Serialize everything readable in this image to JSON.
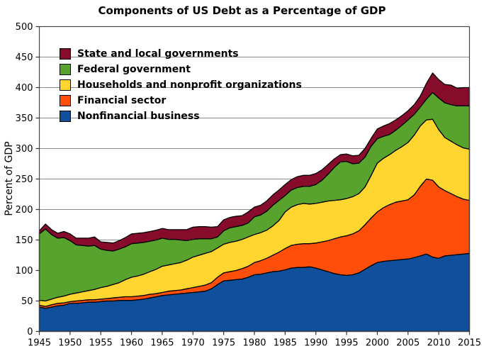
{
  "legend": [
    {
      "label": "State and local governments",
      "color": "#870B2B"
    },
    {
      "label": "Federal government",
      "color": "#57A32E"
    },
    {
      "label": "Households and nonprofit organizations",
      "color": "#FFD52F"
    },
    {
      "label": "Financial sector",
      "color": "#FF4E0A"
    },
    {
      "label": "Nonfinancial business",
      "color": "#0F4F9C"
    }
  ],
  "chart_data": {
    "type": "area",
    "stacked": true,
    "title": "Components of US Debt as a Percentage of GDP",
    "xlabel": "",
    "ylabel": "Percent of GDP",
    "xlim": [
      1945,
      2015
    ],
    "ylim": [
      0,
      500
    ],
    "grid": true,
    "legend_position": "upper-left",
    "grid_color": "#8C8C8C",
    "frame_color": "#444444",
    "outline_color": "#000000",
    "y_ticks": [
      0,
      50,
      100,
      150,
      200,
      250,
      300,
      350,
      400,
      450,
      500
    ],
    "x_ticks": [
      1945,
      1950,
      1955,
      1960,
      1965,
      1970,
      1975,
      1980,
      1985,
      1990,
      1995,
      2000,
      2005,
      2010,
      2015
    ],
    "x": [
      1945,
      1946,
      1947,
      1948,
      1949,
      1950,
      1951,
      1952,
      1953,
      1954,
      1955,
      1956,
      1957,
      1958,
      1959,
      1960,
      1961,
      1962,
      1963,
      1964,
      1965,
      1966,
      1967,
      1968,
      1969,
      1970,
      1971,
      1972,
      1973,
      1974,
      1975,
      1976,
      1977,
      1978,
      1979,
      1980,
      1981,
      1982,
      1983,
      1984,
      1985,
      1986,
      1987,
      1988,
      1989,
      1990,
      1991,
      1992,
      1993,
      1994,
      1995,
      1996,
      1997,
      1998,
      1999,
      2000,
      2001,
      2002,
      2003,
      2004,
      2005,
      2006,
      2007,
      2008,
      2009,
      2010,
      2011,
      2012,
      2013,
      2014,
      2015
    ],
    "series": [
      {
        "name": "Nonfinancial business",
        "color": "#0F4F9C",
        "values": [
          40,
          38,
          40,
          42,
          43,
          46,
          46,
          47,
          48,
          48,
          49,
          50,
          50,
          51,
          51,
          51,
          52,
          53,
          55,
          57,
          59,
          60,
          61,
          62,
          63,
          64,
          65,
          66,
          70,
          77,
          83,
          84,
          85,
          86,
          89,
          93,
          94,
          96,
          98,
          99,
          101,
          104,
          105,
          105,
          106,
          104,
          101,
          98,
          95,
          93,
          92,
          93,
          96,
          102,
          108,
          113,
          115,
          116,
          117,
          118,
          119,
          121,
          124,
          127,
          122,
          120,
          124,
          125,
          126,
          127,
          128
        ]
      },
      {
        "name": "Financial sector",
        "color": "#FF4E0A",
        "values": [
          3,
          3,
          4,
          4,
          4,
          3,
          4,
          4,
          4,
          4,
          4,
          4,
          5,
          5,
          6,
          6,
          6,
          6,
          6,
          5,
          5,
          6,
          6,
          6,
          7,
          8,
          9,
          10,
          10,
          12,
          13,
          14,
          15,
          17,
          18,
          20,
          22,
          24,
          27,
          31,
          35,
          37,
          38,
          39,
          38,
          41,
          46,
          51,
          57,
          62,
          65,
          67,
          69,
          73,
          78,
          83,
          88,
          92,
          95,
          96,
          97,
          103,
          114,
          123,
          126,
          117,
          107,
          101,
          95,
          90,
          87
        ]
      },
      {
        "name": "Households and nonprofit organizations",
        "color": "#FFD52F",
        "values": [
          8,
          9,
          9,
          10,
          11,
          12,
          13,
          14,
          15,
          17,
          19,
          20,
          22,
          24,
          28,
          32,
          33,
          35,
          37,
          40,
          43,
          43,
          44,
          45,
          47,
          50,
          51,
          52,
          51,
          48,
          47,
          48,
          48,
          48,
          48,
          46,
          46,
          46,
          48,
          52,
          60,
          63,
          65,
          66,
          65,
          65,
          65,
          65,
          63,
          61,
          61,
          61,
          61,
          62,
          70,
          80,
          81,
          82,
          85,
          89,
          94,
          98,
          99,
          97,
          100,
          94,
          87,
          86,
          85,
          84,
          84
        ]
      },
      {
        "name": "Federal government",
        "color": "#57A32E",
        "values": [
          109,
          118,
          106,
          97,
          96,
          88,
          79,
          76,
          73,
          72,
          63,
          59,
          55,
          55,
          54,
          55,
          54,
          52,
          50,
          48,
          46,
          42,
          40,
          37,
          32,
          29,
          27,
          24,
          21,
          18,
          22,
          24,
          24,
          23,
          23,
          29,
          29,
          31,
          34,
          33,
          27,
          28,
          28,
          28,
          29,
          31,
          36,
          44,
          54,
          62,
          61,
          54,
          50,
          49,
          48,
          40,
          36,
          33,
          33,
          35,
          37,
          34,
          31,
          34,
          44,
          52,
          57,
          60,
          64,
          69,
          71
        ]
      },
      {
        "name": "State and local governments",
        "color": "#870B2B",
        "values": [
          5,
          8,
          8,
          8,
          10,
          11,
          11,
          12,
          13,
          14,
          12,
          13,
          13,
          14,
          15,
          16,
          16,
          16,
          16,
          16,
          16,
          16,
          16,
          17,
          18,
          20,
          20,
          20,
          19,
          17,
          18,
          17,
          17,
          16,
          18,
          16,
          16,
          17,
          17,
          17,
          18,
          17,
          18,
          18,
          18,
          18,
          17,
          16,
          14,
          12,
          12,
          13,
          13,
          14,
          13,
          16,
          17,
          18,
          17,
          16,
          15,
          16,
          18,
          26,
          32,
          30,
          30,
          32,
          29,
          30,
          30
        ]
      }
    ]
  }
}
